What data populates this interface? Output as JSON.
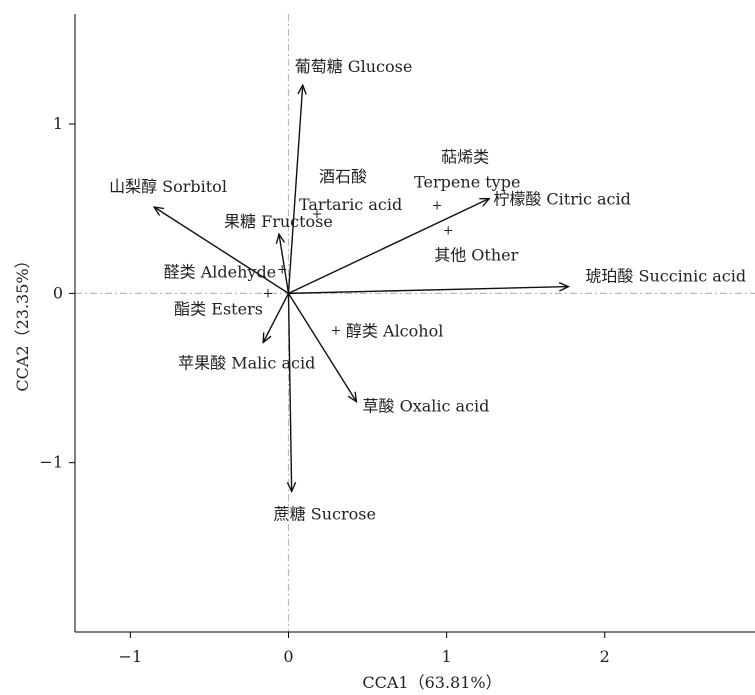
{
  "chart_data": {
    "type": "scatter",
    "title": "",
    "xlabel": "CCA1（63.81%）",
    "ylabel": "CCA2（23.35%）",
    "xlim": [
      -1.35,
      2.95
    ],
    "ylim": [
      -2.0,
      1.65
    ],
    "xticks": [
      -1,
      0,
      1,
      2
    ],
    "yticks": [
      -1,
      0,
      1
    ],
    "xtick_labels": [
      "−1",
      "0",
      "1",
      "2"
    ],
    "ytick_labels": [
      "−1",
      "0",
      "1"
    ],
    "grid": false,
    "reference_lines": {
      "x": 0,
      "y": 0,
      "style": "dash-dot",
      "color": "#bbbbbb"
    },
    "vectors": [
      {
        "label": "葡萄糖 Glucose",
        "x": 0.09,
        "y": 1.23
      },
      {
        "label": "山梨醇 Sorbitol",
        "x": -0.85,
        "y": 0.51
      },
      {
        "label": "果糖 Fructose",
        "x": -0.06,
        "y": 0.35
      },
      {
        "label": "柠檬酸 Citric acid",
        "x": 1.27,
        "y": 0.56
      },
      {
        "label": "琥珀酸 Succinic acid",
        "x": 1.77,
        "y": 0.04
      },
      {
        "label": "苹果酸 Malic acid",
        "x": -0.16,
        "y": -0.29
      },
      {
        "label": "草酸 Oxalic acid",
        "x": 0.43,
        "y": -0.64
      },
      {
        "label": "蔗糖 Sucrose",
        "x": 0.02,
        "y": -1.17
      }
    ],
    "points": [
      {
        "label": "酒石酸 Tartaric acid",
        "x": 0.18,
        "y": 0.47
      },
      {
        "label": "萜烯类 Terpene type",
        "x": 0.94,
        "y": 0.52
      },
      {
        "label": "其他 Other",
        "x": 1.01,
        "y": 0.37
      },
      {
        "label": "醛类 Aldehyde",
        "x": -0.04,
        "y": 0.14
      },
      {
        "label": "酯类 Esters",
        "x": -0.13,
        "y": 0.0
      },
      {
        "label": "醇类 Alcohol",
        "x": 0.3,
        "y": -0.22
      }
    ]
  }
}
